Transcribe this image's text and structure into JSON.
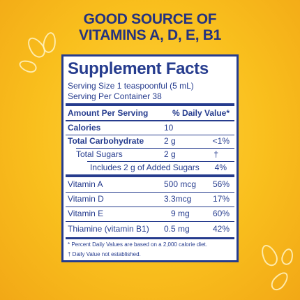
{
  "headline": {
    "line1": "GOOD SOURCE OF",
    "line2": "VITAMINS A, D, E, B1"
  },
  "facts": {
    "title": "Supplement Facts",
    "serving_size": "Serving Size 1 teaspoonful (5 mL)",
    "servings_per_container": "Serving Per Container 38",
    "header_amount": "Amount Per Serving",
    "header_dv": "% Daily Value*",
    "rows": [
      {
        "name": "Calories",
        "amount": "10",
        "dv": ""
      },
      {
        "name": "Total Carbohydrate",
        "amount": "2 g",
        "dv": "<1%"
      },
      {
        "name": "Total Sugars",
        "amount": "2 g",
        "dv": "†"
      },
      {
        "name": "Includes  2 g of Added Sugars",
        "amount": "",
        "dv": "4%"
      },
      {
        "name": "Vitamin A",
        "amount": "500 mcg",
        "dv": "56%"
      },
      {
        "name": "Vitamin D",
        "amount": "3.3mcg",
        "dv": "17%"
      },
      {
        "name": "Vitamin E",
        "amount": "9 mg",
        "dv": "60%"
      },
      {
        "name": "Thiamine (vitamin B1)",
        "amount": "0.5 mg",
        "dv": "42%"
      }
    ],
    "footnote1": "* Percent Daily Values are based on a 2,000 calorie diet.",
    "footnote2": "† Daily Value  not established."
  },
  "colors": {
    "navy": "#263c8e",
    "background": "#f9bf1d"
  }
}
